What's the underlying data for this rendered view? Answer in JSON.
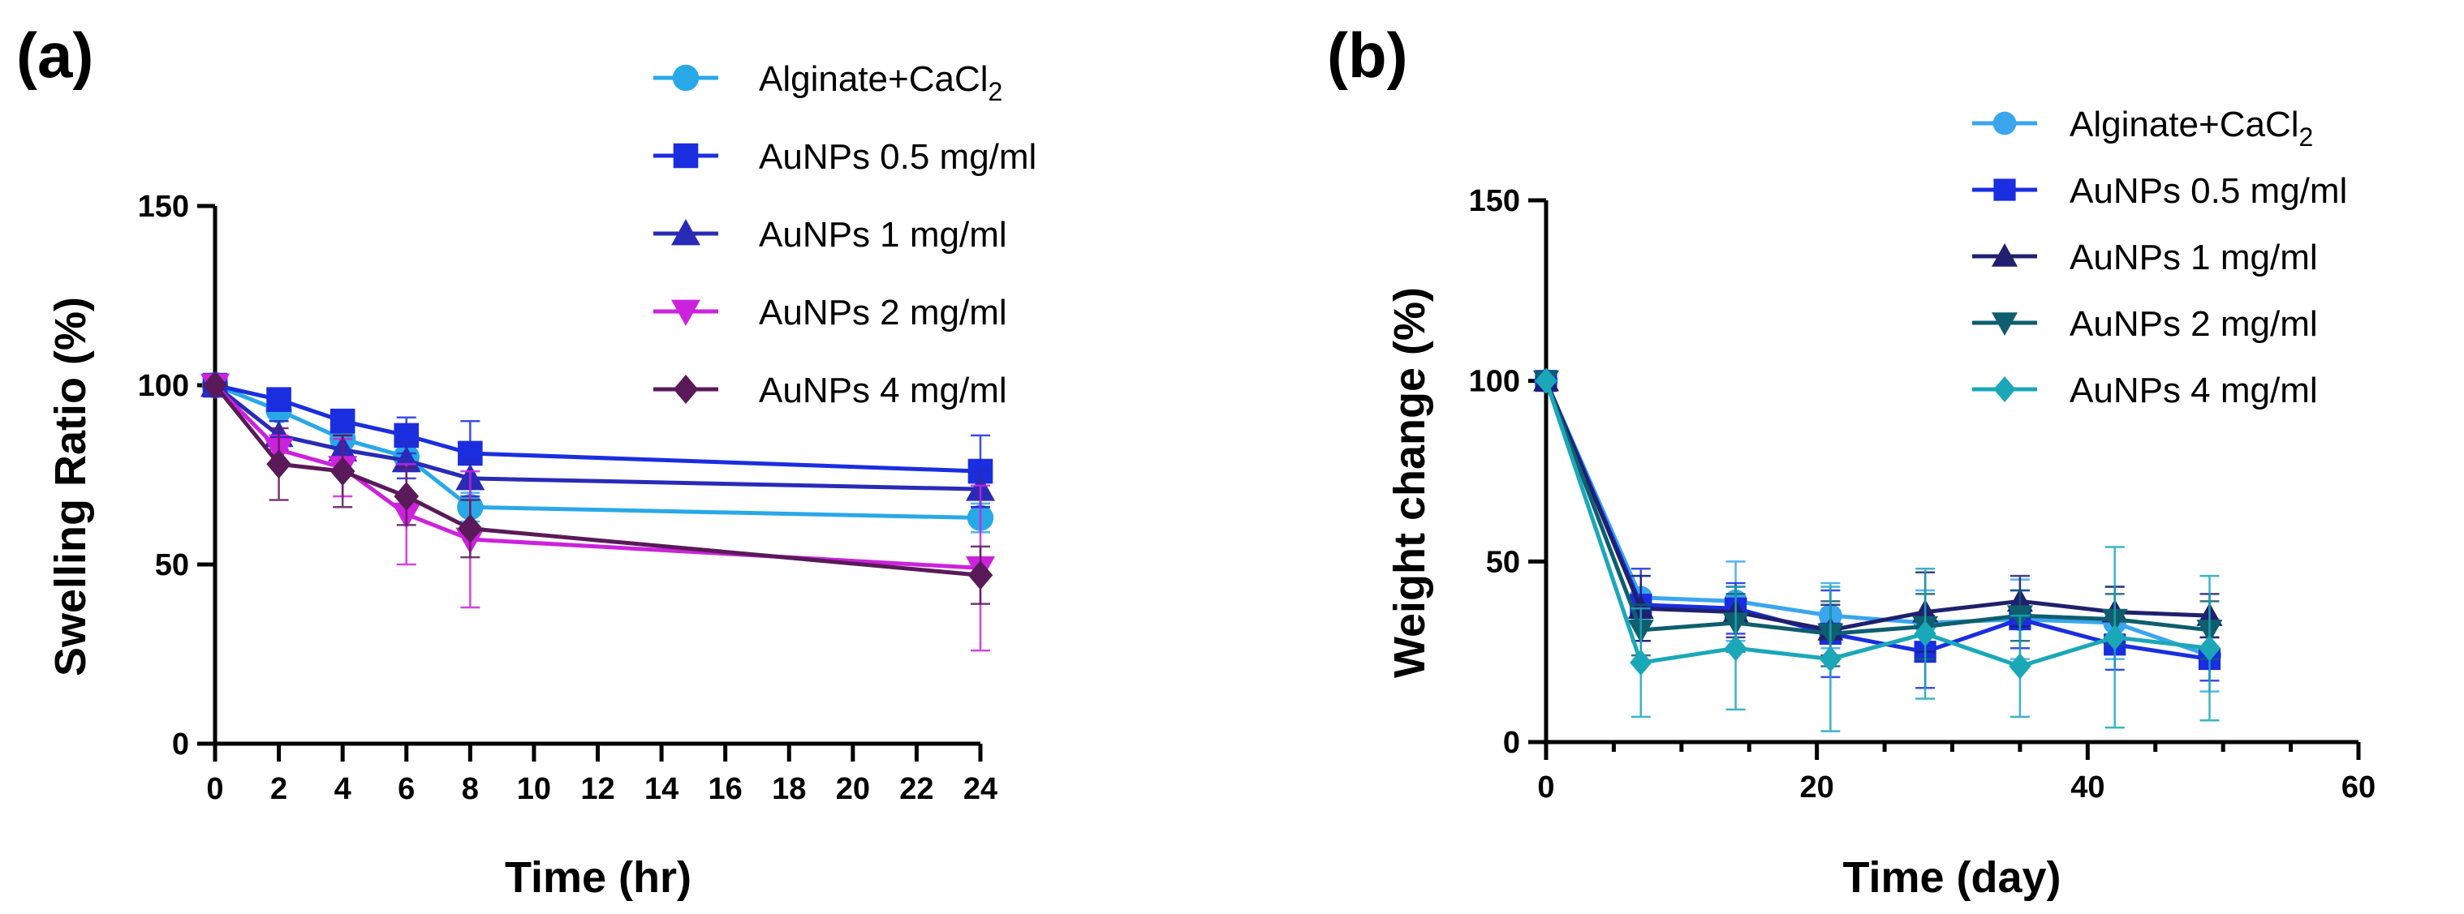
{
  "chart_data": [
    {
      "panel": "(a)",
      "type": "line",
      "xlabel": "Time (hr)",
      "ylabel": "Swelling Ratio (%)",
      "xlim": [
        0,
        24
      ],
      "ylim": [
        0,
        150
      ],
      "x_ticks": [
        0,
        2,
        4,
        6,
        8,
        10,
        12,
        14,
        16,
        18,
        20,
        22,
        24
      ],
      "y_ticks": [
        0,
        50,
        100,
        150
      ],
      "legend_position": "top-right",
      "x": [
        0,
        2,
        4,
        6,
        8,
        24
      ],
      "series": [
        {
          "name": "Alginate+CaCl",
          "subscript": "2",
          "color": "#29a8e8",
          "marker": "circle",
          "values": [
            100,
            93,
            85,
            80,
            66,
            63
          ],
          "errors": [
            0,
            3,
            3,
            4,
            4,
            4
          ]
        },
        {
          "name": "AuNPs 0.5 mg/ml",
          "subscript": "",
          "color": "#1a2ee0",
          "marker": "square",
          "values": [
            100,
            96,
            90,
            86,
            81,
            76
          ],
          "errors": [
            0,
            2,
            3,
            5,
            9,
            10
          ]
        },
        {
          "name": "AuNPs 1 mg/ml",
          "subscript": "",
          "color": "#2a2ab8",
          "marker": "triangle-up",
          "values": [
            100,
            86,
            82,
            79,
            74,
            71
          ],
          "errors": [
            0,
            4,
            4,
            5,
            5,
            5
          ]
        },
        {
          "name": "AuNPs 2 mg/ml",
          "subscript": "",
          "color": "#cc22dd",
          "marker": "triangle-down",
          "values": [
            100,
            82,
            77,
            64,
            57,
            49
          ],
          "errors": [
            0,
            4,
            8,
            14,
            19,
            23
          ]
        },
        {
          "name": "AuNPs 4 mg/ml",
          "subscript": "",
          "color": "#5a1a5a",
          "marker": "diamond",
          "values": [
            100,
            78,
            76,
            69,
            60,
            47
          ],
          "errors": [
            0,
            10,
            10,
            8,
            8,
            8
          ]
        }
      ]
    },
    {
      "panel": "(b)",
      "type": "line",
      "xlabel": "Time (day)",
      "ylabel": "Weight change (%)",
      "xlim": [
        0,
        60
      ],
      "ylim": [
        0,
        150
      ],
      "x_ticks": [
        0,
        20,
        40,
        60
      ],
      "y_ticks": [
        0,
        50,
        100,
        150
      ],
      "legend_position": "top-right",
      "x": [
        0,
        7,
        14,
        21,
        28,
        35,
        42,
        49
      ],
      "series": [
        {
          "name": "Alginate+CaCl",
          "subscript": "2",
          "color": "#3aa6ee",
          "marker": "circle",
          "values": [
            100,
            40,
            39,
            35,
            33,
            34,
            33,
            24
          ],
          "errors": [
            0,
            6,
            11,
            9,
            9,
            11,
            10,
            10
          ]
        },
        {
          "name": "AuNPs 0.5 mg/ml",
          "subscript": "",
          "color": "#1a2ee0",
          "marker": "square",
          "values": [
            100,
            38,
            37,
            30,
            25,
            34,
            27,
            23
          ],
          "errors": [
            0,
            10,
            7,
            12,
            10,
            8,
            7,
            6
          ]
        },
        {
          "name": "AuNPs 1 mg/ml",
          "subscript": "",
          "color": "#20206e",
          "marker": "triangle-up",
          "values": [
            100,
            37,
            36,
            31,
            36,
            39,
            36,
            35
          ],
          "errors": [
            0,
            9,
            7,
            7,
            11,
            7,
            7,
            6
          ]
        },
        {
          "name": "AuNPs 2 mg/ml",
          "subscript": "",
          "color": "#0e5e6e",
          "marker": "triangle-down",
          "values": [
            100,
            31,
            33,
            30,
            32,
            35,
            34,
            31
          ],
          "errors": [
            0,
            7,
            8,
            9,
            9,
            7,
            7,
            8
          ]
        },
        {
          "name": "AuNPs 4 mg/ml",
          "subscript": "",
          "color": "#1aa8b8",
          "marker": "diamond",
          "values": [
            100,
            22,
            26,
            23,
            30,
            21,
            29,
            26
          ],
          "errors": [
            0,
            15,
            17,
            20,
            18,
            14,
            25,
            20
          ]
        }
      ]
    }
  ]
}
